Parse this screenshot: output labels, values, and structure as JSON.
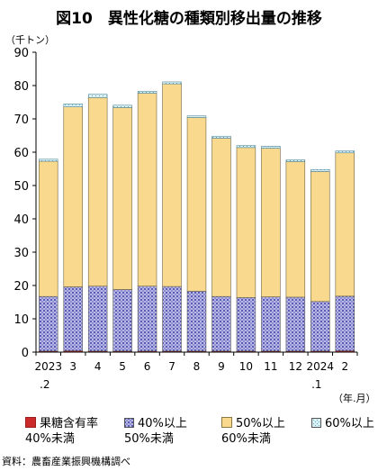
{
  "title": "図10　異性化糖の種類別移出量の推移",
  "y_unit": "（千トン）",
  "x_unit": "（年.月）",
  "source": "資料：農畜産業振興機構調べ",
  "legend": [
    {
      "line1": "果糖含有率",
      "line2": "40%未満"
    },
    {
      "line1": "40%以上",
      "line2": "50%未満"
    },
    {
      "line1": "50%以上",
      "line2": "60%未満"
    },
    {
      "line1": "60%以上",
      "line2": ""
    }
  ],
  "colors": {
    "s1": "#cc2a2a",
    "s2": "#9c9cd8",
    "s3": "#f9d98d",
    "s4": "#bfe3ef"
  },
  "chart_data": {
    "type": "bar",
    "stacked": true,
    "categories": [
      {
        "top": "2023",
        "bottom": ".2"
      },
      {
        "top": "3",
        "bottom": ""
      },
      {
        "top": "4",
        "bottom": ""
      },
      {
        "top": "5",
        "bottom": ""
      },
      {
        "top": "6",
        "bottom": ""
      },
      {
        "top": "7",
        "bottom": ""
      },
      {
        "top": "8",
        "bottom": ""
      },
      {
        "top": "9",
        "bottom": ""
      },
      {
        "top": "10",
        "bottom": ""
      },
      {
        "top": "11",
        "bottom": ""
      },
      {
        "top": "12",
        "bottom": ""
      },
      {
        "top": "2024",
        "bottom": ".1"
      },
      {
        "top": "2",
        "bottom": ""
      }
    ],
    "series": [
      {
        "name": "果糖含有率 40%未満",
        "values": [
          0.3,
          0.4,
          0.3,
          0.3,
          0.3,
          0.3,
          0.3,
          0.3,
          0.3,
          0.3,
          0.3,
          0.3,
          0.4
        ]
      },
      {
        "name": "40%以上 50%未満",
        "values": [
          16.4,
          19.2,
          19.5,
          18.5,
          19.5,
          19.4,
          18.0,
          16.4,
          16.1,
          16.3,
          16.2,
          14.9,
          16.4
        ]
      },
      {
        "name": "50%以上 60%未満",
        "values": [
          40.6,
          54.0,
          56.6,
          54.6,
          57.9,
          60.8,
          52.1,
          47.5,
          45.0,
          44.6,
          40.7,
          39.0,
          43.0
        ]
      },
      {
        "name": "60%以上",
        "values": [
          0.6,
          0.9,
          1.0,
          0.7,
          0.6,
          0.6,
          0.5,
          0.6,
          0.6,
          0.6,
          0.5,
          0.6,
          0.6
        ]
      }
    ],
    "ylim": [
      0,
      90
    ],
    "yticks": [
      0,
      10,
      20,
      30,
      40,
      50,
      60,
      70,
      80,
      90
    ],
    "grid": false,
    "legend_position": "bottom"
  }
}
